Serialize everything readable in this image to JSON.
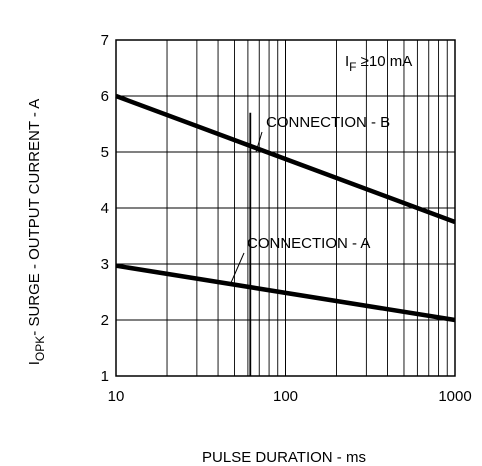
{
  "chart_data": {
    "type": "line",
    "x_scale": "log",
    "xlim": [
      10,
      1000
    ],
    "ylim": [
      1,
      7
    ],
    "xlabel": "PULSE DURATION - ms",
    "ylabel": {
      "prefix": "I",
      "subscript": "OPK",
      "rest": "- SURGE - OUTPUT CURRENT - A"
    },
    "x_ticks": [
      "10",
      "100",
      "1000"
    ],
    "x_tick_values": [
      10,
      100,
      1000
    ],
    "y_ticks": [
      "1",
      "2",
      "3",
      "4",
      "5",
      "6",
      "7"
    ],
    "y_tick_values": [
      1,
      2,
      3,
      4,
      5,
      6,
      7
    ],
    "grid": true,
    "marker_x": 62,
    "series": [
      {
        "name": "CONNECTION - B",
        "x": [
          10,
          1000
        ],
        "y": [
          6.0,
          3.75
        ]
      },
      {
        "name": "CONNECTION - A",
        "x": [
          10,
          1000
        ],
        "y": [
          2.97,
          2.0
        ]
      }
    ],
    "annotation": {
      "prefix": "I",
      "subscript": "F",
      "rest": " ≥10 mA"
    }
  }
}
